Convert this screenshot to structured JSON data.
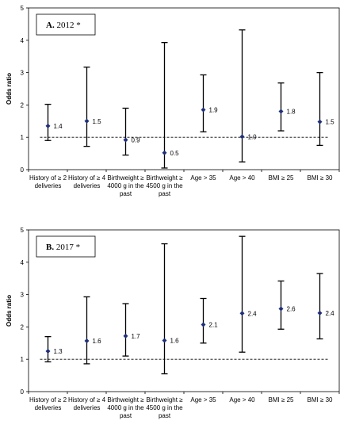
{
  "chart_data": [
    {
      "type": "scatter",
      "title": "A. 2012 *",
      "title_bold_part": "A.",
      "title_rest": " 2012 *",
      "xlabel": "",
      "ylabel": "Odds ratio",
      "ylim": [
        0,
        5
      ],
      "yticks": [
        0,
        1,
        2,
        3,
        4,
        5
      ],
      "reference_line": 1,
      "grid": false,
      "marker_color": "#1f2f7a",
      "categories": [
        [
          "History of ≥ 2",
          "deliveries"
        ],
        [
          "History of ≥ 4",
          "deliveries"
        ],
        [
          "Birthweight ≥",
          "4000 g in the",
          "past"
        ],
        [
          "Birthweight ≥",
          "4500 g in the",
          "past"
        ],
        [
          "Age > 35"
        ],
        [
          "Age > 40"
        ],
        [
          "BMI ≥ 25"
        ],
        [
          "BMI ≥ 30"
        ]
      ],
      "values": [
        1.4,
        1.5,
        0.9,
        0.5,
        1.9,
        1.0,
        1.8,
        1.5
      ],
      "point_estimates": [
        1.35,
        1.5,
        0.92,
        0.52,
        1.85,
        1.02,
        1.8,
        1.48
      ],
      "lower": [
        0.9,
        0.72,
        0.45,
        0.05,
        1.17,
        0.24,
        1.2,
        0.75
      ],
      "upper": [
        2.02,
        3.17,
        1.9,
        3.93,
        2.93,
        4.32,
        2.68,
        3.0
      ],
      "data_labels": [
        "1.4",
        "1.5",
        "0.9",
        "0.5",
        "1.9",
        "1.0",
        "1.8",
        "1.5"
      ]
    },
    {
      "type": "scatter",
      "title": "B. 2017 *",
      "title_bold_part": "B.",
      "title_rest": " 2017 *",
      "xlabel": "",
      "ylabel": "Odds ratio",
      "ylim": [
        0,
        5
      ],
      "yticks": [
        0,
        1,
        2,
        3,
        4,
        5
      ],
      "reference_line": 1,
      "grid": false,
      "marker_color": "#1f2f7a",
      "categories": [
        [
          "History of ≥ 2",
          "deliveries"
        ],
        [
          "History of ≥ 4",
          "deliveries"
        ],
        [
          "Birthweight ≥",
          "4000 g in the",
          "past"
        ],
        [
          "Birthweight ≥",
          "4500 g in the",
          "past"
        ],
        [
          "Age > 35"
        ],
        [
          "Age > 40"
        ],
        [
          "BMI ≥ 25"
        ],
        [
          "BMI ≥ 30"
        ]
      ],
      "values": [
        1.3,
        1.6,
        1.7,
        1.6,
        2.1,
        2.4,
        2.6,
        2.4
      ],
      "point_estimates": [
        1.25,
        1.57,
        1.72,
        1.58,
        2.07,
        2.42,
        2.56,
        2.43
      ],
      "lower": [
        0.92,
        0.86,
        1.1,
        0.55,
        1.5,
        1.22,
        1.93,
        1.63
      ],
      "upper": [
        1.7,
        2.93,
        2.72,
        4.57,
        2.88,
        4.8,
        3.42,
        3.65
      ],
      "data_labels": [
        "1.3",
        "1.6",
        "1.7",
        "1.6",
        "2.1",
        "2.4",
        "2.6",
        "2.4"
      ]
    }
  ]
}
